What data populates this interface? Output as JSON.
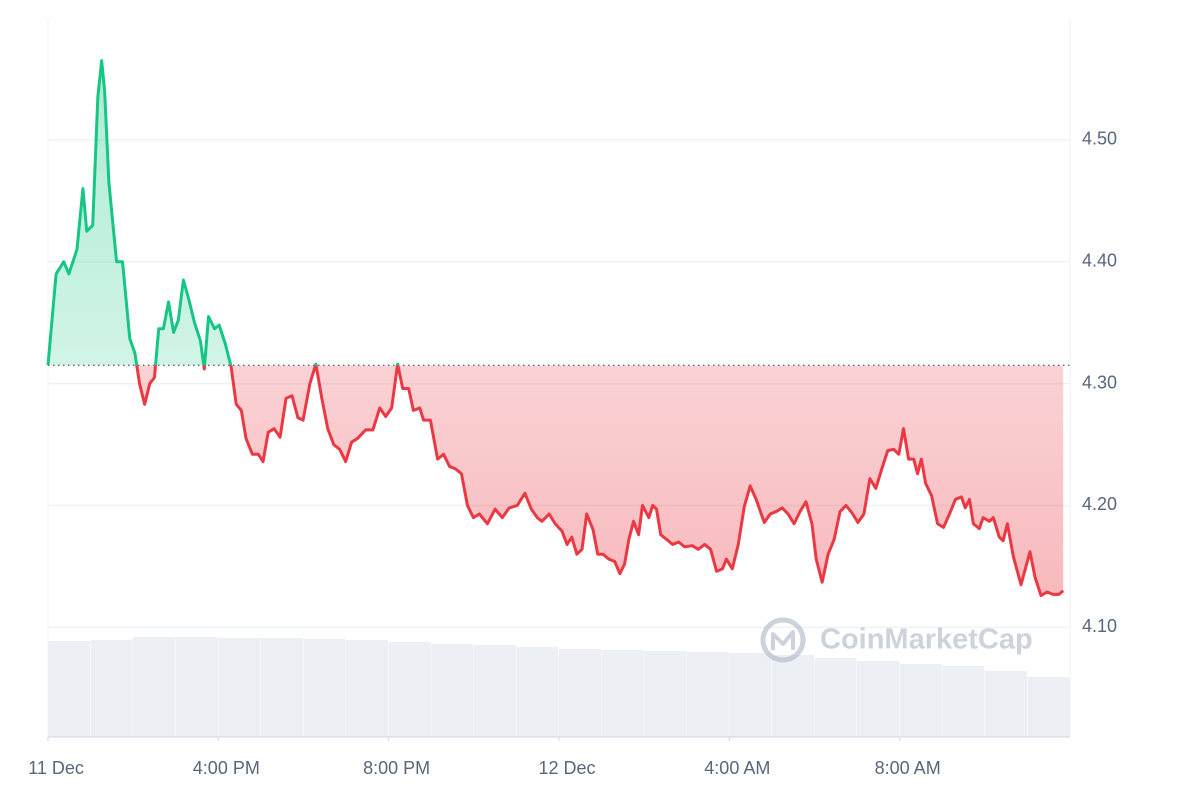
{
  "chart_data": {
    "type": "line",
    "x": [
      12.0,
      12.19,
      12.37,
      12.49,
      12.68,
      12.82,
      12.91,
      13.05,
      13.17,
      13.26,
      13.33,
      13.43,
      13.61,
      13.75,
      13.92,
      14.04,
      14.15,
      14.27,
      14.39,
      14.5,
      14.6,
      14.71,
      14.83,
      14.95,
      15.06,
      15.18,
      15.3,
      15.44,
      15.58,
      15.67,
      15.77,
      15.91,
      16.02,
      16.16,
      16.3,
      16.42,
      16.54,
      16.65,
      16.8,
      16.94,
      17.05,
      17.17,
      17.31,
      17.45,
      17.59,
      17.73,
      17.87,
      17.99,
      18.15,
      18.29,
      18.43,
      18.57,
      18.71,
      18.85,
      18.99,
      19.13,
      19.27,
      19.46,
      19.63,
      19.79,
      19.93,
      20.07,
      20.21,
      20.33,
      20.47,
      20.58,
      20.73,
      20.82,
      20.98,
      21.15,
      21.29,
      21.43,
      21.57,
      21.71,
      21.85,
      21.99,
      22.13,
      22.32,
      22.5,
      22.67,
      22.83,
      23.02,
      23.2,
      23.35,
      23.49,
      23.6,
      23.77,
      23.91,
      24.07,
      24.19,
      24.3,
      24.42,
      24.54,
      24.65,
      24.8,
      24.91,
      25.03,
      25.17,
      25.31,
      25.43,
      25.54,
      25.64,
      25.75,
      25.87,
      25.96,
      26.11,
      26.2,
      26.29,
      26.39,
      26.53,
      26.67,
      26.81,
      26.95,
      27.13,
      27.27,
      27.42,
      27.56,
      27.7,
      27.84,
      27.93,
      28.07,
      28.21,
      28.35,
      28.49,
      28.63,
      28.82,
      28.96,
      29.1,
      29.24,
      29.38,
      29.52,
      29.66,
      29.8,
      29.94,
      30.04,
      30.18,
      30.32,
      30.46,
      30.6,
      30.74,
      30.88,
      31.02,
      31.16,
      31.3,
      31.44,
      31.58,
      31.72,
      31.86,
      31.98,
      32.09,
      32.21,
      32.33,
      32.42,
      32.51,
      32.61,
      32.75,
      32.89,
      33.03,
      33.17,
      33.31,
      33.45,
      33.54,
      33.64,
      33.73,
      33.87,
      33.96,
      34.11,
      34.2,
      34.34,
      34.43,
      34.53,
      34.67,
      34.85,
      35.06,
      35.18,
      35.32,
      35.46,
      35.6,
      35.74,
      35.84
    ],
    "values": [
      4.315,
      4.39,
      4.4,
      4.39,
      4.41,
      4.46,
      4.425,
      4.43,
      4.535,
      4.565,
      4.54,
      4.465,
      4.4,
      4.4,
      4.337,
      4.325,
      4.3,
      4.283,
      4.3,
      4.305,
      4.345,
      4.345,
      4.367,
      4.342,
      4.352,
      4.385,
      4.37,
      4.35,
      4.335,
      4.312,
      4.355,
      4.345,
      4.348,
      4.333,
      4.314,
      4.283,
      4.278,
      4.255,
      4.242,
      4.242,
      4.236,
      4.26,
      4.263,
      4.256,
      4.288,
      4.29,
      4.272,
      4.27,
      4.3,
      4.316,
      4.288,
      4.263,
      4.25,
      4.246,
      4.236,
      4.252,
      4.255,
      4.262,
      4.262,
      4.28,
      4.273,
      4.28,
      4.316,
      4.296,
      4.296,
      4.278,
      4.28,
      4.27,
      4.27,
      4.238,
      4.242,
      4.232,
      4.23,
      4.226,
      4.2,
      4.19,
      4.193,
      4.185,
      4.197,
      4.19,
      4.198,
      4.2,
      4.21,
      4.197,
      4.19,
      4.187,
      4.193,
      4.185,
      4.179,
      4.168,
      4.174,
      4.16,
      4.164,
      4.193,
      4.18,
      4.16,
      4.16,
      4.156,
      4.154,
      4.144,
      4.152,
      4.172,
      4.187,
      4.176,
      4.2,
      4.19,
      4.2,
      4.197,
      4.176,
      4.172,
      4.168,
      4.17,
      4.166,
      4.167,
      4.164,
      4.168,
      4.164,
      4.146,
      4.148,
      4.156,
      4.148,
      4.168,
      4.199,
      4.216,
      4.205,
      4.186,
      4.193,
      4.195,
      4.198,
      4.193,
      4.185,
      4.195,
      4.203,
      4.185,
      4.156,
      4.137,
      4.16,
      4.172,
      4.195,
      4.2,
      4.194,
      4.186,
      4.193,
      4.222,
      4.214,
      4.23,
      4.245,
      4.246,
      4.242,
      4.263,
      4.238,
      4.238,
      4.226,
      4.238,
      4.218,
      4.208,
      4.185,
      4.182,
      4.193,
      4.205,
      4.207,
      4.198,
      4.205,
      4.185,
      4.181,
      4.19,
      4.187,
      4.19,
      4.174,
      4.171,
      4.185,
      4.158,
      4.135,
      4.162,
      4.141,
      4.126,
      4.129,
      4.127,
      4.127,
      4.13
    ],
    "baseline": 4.315,
    "up_color": "#16c784",
    "down_color": "#ea3943",
    "xlim": [
      12,
      36
    ],
    "xticks": [
      {
        "value": 12,
        "label": "11 Dec"
      },
      {
        "value": 16,
        "label": "4:00 PM"
      },
      {
        "value": 20,
        "label": "8:00 PM"
      },
      {
        "value": 24,
        "label": "12 Dec"
      },
      {
        "value": 28,
        "label": "4:00 AM"
      },
      {
        "value": 32,
        "label": "8:00 AM"
      }
    ],
    "ylim": [
      4.01,
      4.6
    ],
    "yticks": [
      {
        "value": 4.1,
        "label": "4.10"
      },
      {
        "value": 4.2,
        "label": "4.20"
      },
      {
        "value": 4.3,
        "label": "4.30"
      },
      {
        "value": 4.4,
        "label": "4.40"
      },
      {
        "value": 4.5,
        "label": "4.50"
      }
    ],
    "grid": true,
    "volume": {
      "x": [
        12,
        13,
        14,
        15,
        16,
        17,
        18,
        19,
        20,
        21,
        22,
        23,
        24,
        25,
        26,
        27,
        28,
        29,
        30,
        31,
        32,
        33,
        34,
        35
      ],
      "values": [
        96,
        97,
        100,
        100,
        99,
        99,
        98,
        97,
        95,
        93,
        92,
        90,
        88,
        87,
        86,
        85,
        84,
        82,
        79,
        76,
        73,
        71,
        66,
        60
      ],
      "lim": [
        0,
        100
      ],
      "color": "#eceff3"
    },
    "watermark": "CoinMarketCap"
  }
}
